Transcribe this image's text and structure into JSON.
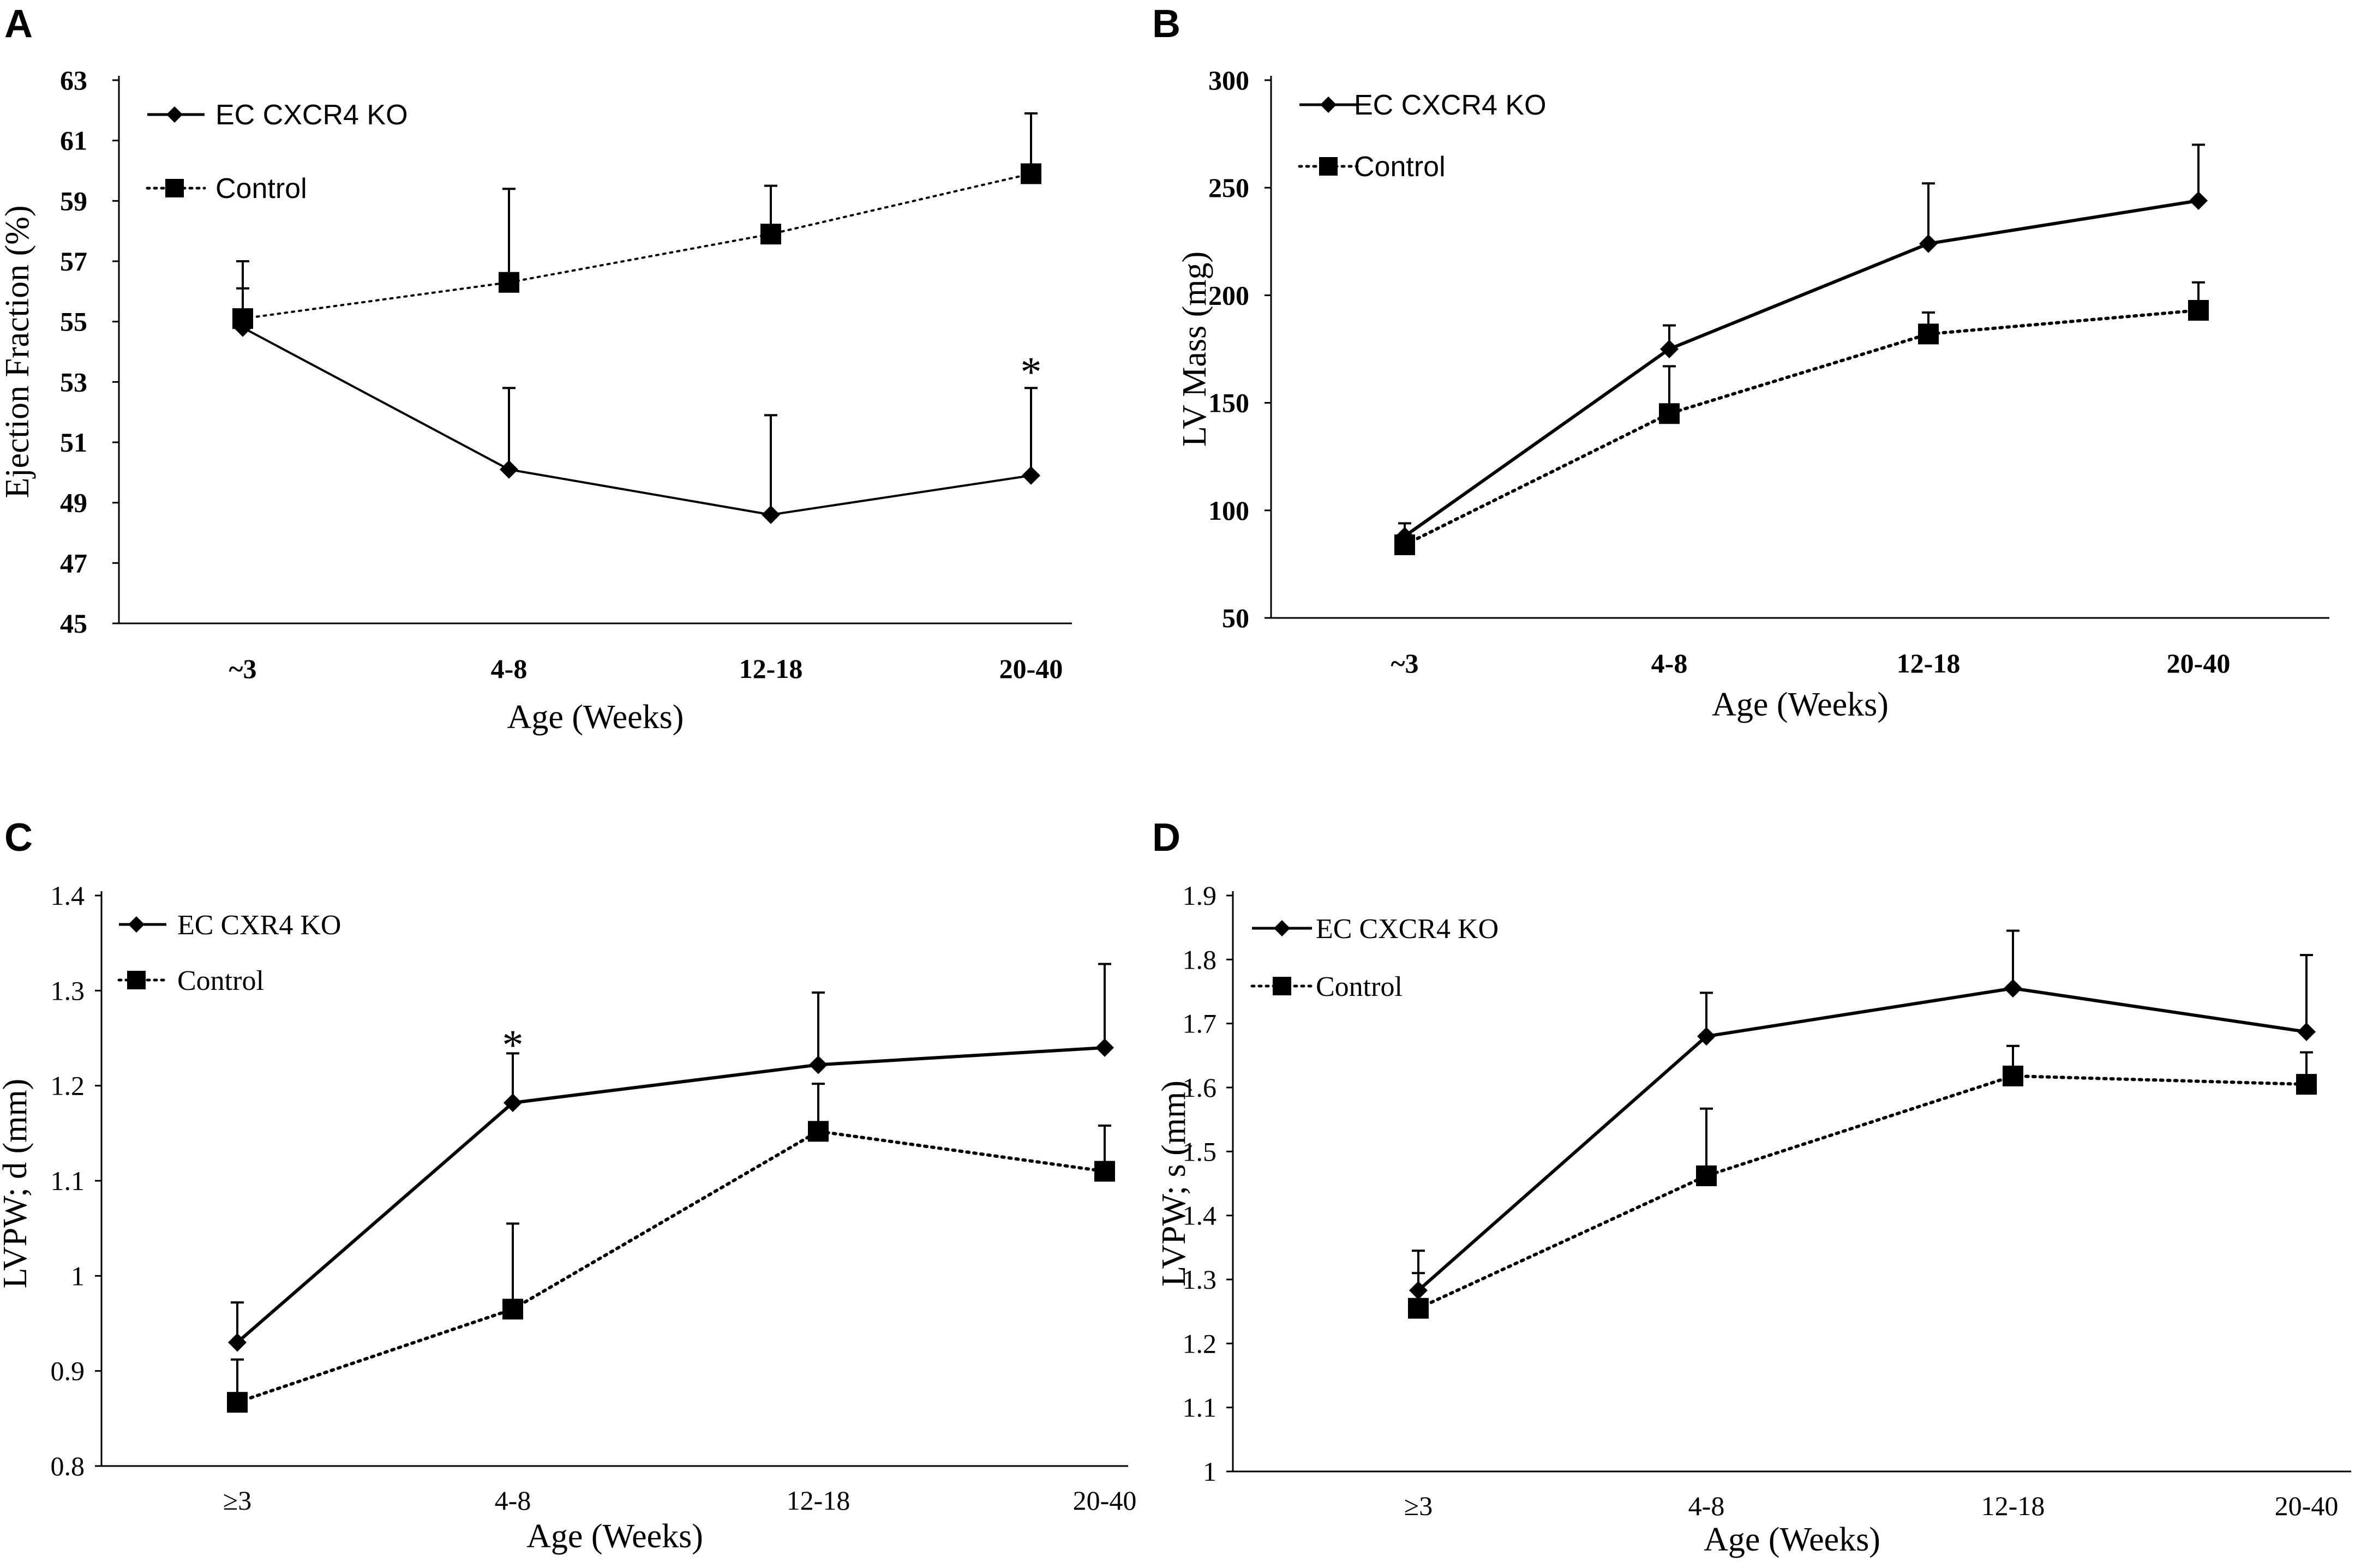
{
  "chart_data": [
    {
      "type": "line",
      "panel": "A",
      "title": "",
      "xlabel": "Age (Weeks)",
      "ylabel": "Ejection Fraction (%)",
      "categories": [
        "~3",
        "4-8",
        "12-18",
        "20-40"
      ],
      "ylim": [
        45,
        63
      ],
      "yticks": [
        "45",
        "47",
        "49",
        "51",
        "53",
        "55",
        "57",
        "59",
        "61",
        "63"
      ],
      "series": [
        {
          "name": "EC CXCR4 KO",
          "values": [
            54.8,
            50.1,
            48.6,
            49.9
          ],
          "errors": [
            1.3,
            2.7,
            3.3,
            2.9
          ],
          "marker": "diamond",
          "line": "solid"
        },
        {
          "name": "Control",
          "values": [
            55.1,
            56.3,
            57.9,
            59.9
          ],
          "errors": [
            1.9,
            3.1,
            1.6,
            2.0
          ],
          "marker": "square",
          "line": "dotted"
        }
      ],
      "annotations": [
        {
          "text": "*",
          "category": "20-40",
          "value": 53.4
        }
      ]
    },
    {
      "type": "line",
      "panel": "B",
      "title": "",
      "xlabel": "Age (Weeks)",
      "ylabel": "LV Mass (mg)",
      "categories": [
        "~3",
        "4-8",
        "12-18",
        "20-40"
      ],
      "ylim": [
        50,
        300
      ],
      "yticks": [
        "50",
        "100",
        "150",
        "200",
        "250",
        "300"
      ],
      "series": [
        {
          "name": "EC CXCR4 KO",
          "values": [
            88,
            175,
            224,
            244
          ],
          "errors": [
            6,
            11,
            28,
            26
          ],
          "marker": "diamond",
          "line": "solid"
        },
        {
          "name": "Control",
          "values": [
            84,
            145,
            182,
            193
          ],
          "errors": [
            0,
            22,
            10,
            13
          ],
          "marker": "square",
          "line": "dotted"
        }
      ],
      "annotations": []
    },
    {
      "type": "line",
      "panel": "C",
      "title": "",
      "xlabel": "Age (Weeks)",
      "ylabel": "LVPW; d (mm)",
      "categories": [
        "≥3",
        "4-8",
        "12-18",
        "20-40"
      ],
      "ylim": [
        0.8,
        1.4
      ],
      "yticks": [
        "0.8",
        "0.9",
        "1",
        "1.1",
        "1.2",
        "1.3",
        "1.4"
      ],
      "series": [
        {
          "name": "EC CXR4 KO",
          "values": [
            0.93,
            1.182,
            1.222,
            1.24
          ],
          "errors": [
            0.042,
            0.052,
            0.076,
            0.088
          ],
          "marker": "diamond",
          "line": "solid"
        },
        {
          "name": "Control",
          "values": [
            0.867,
            0.965,
            1.152,
            1.11
          ],
          "errors": [
            0.045,
            0.09,
            0.05,
            0.048
          ],
          "marker": "square",
          "line": "dotted"
        }
      ],
      "annotations": [
        {
          "text": "*",
          "category": "4-8",
          "value": 1.245
        }
      ]
    },
    {
      "type": "line",
      "panel": "D",
      "title": "",
      "xlabel": "Age (Weeks)",
      "ylabel": "LVPW; s (mm)",
      "categories": [
        "≥3",
        "4-8",
        "12-18",
        "20-40"
      ],
      "ylim": [
        1.0,
        1.9
      ],
      "yticks": [
        "1",
        "1.1",
        "1.2",
        "1.3",
        "1.4",
        "1.5",
        "1.6",
        "1.7",
        "1.8",
        "1.9"
      ],
      "series": [
        {
          "name": "EC CXCR4 KO",
          "values": [
            1.283,
            1.68,
            1.755,
            1.687
          ],
          "errors": [
            0.062,
            0.068,
            0.09,
            0.12
          ],
          "marker": "diamond",
          "line": "solid"
        },
        {
          "name": "Control",
          "values": [
            1.255,
            1.462,
            1.618,
            1.605
          ],
          "errors": [
            0.055,
            0.105,
            0.047,
            0.05
          ],
          "marker": "square",
          "line": "dotted"
        }
      ],
      "annotations": []
    }
  ]
}
